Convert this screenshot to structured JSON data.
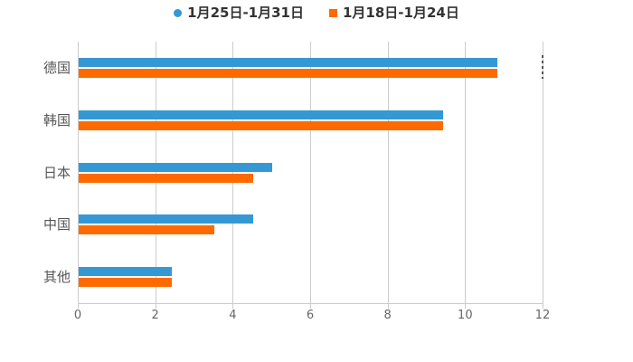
{
  "legend": {
    "items": [
      {
        "label": "1月25日-1月31日",
        "marker": "circle",
        "color": "#3498d4"
      },
      {
        "label": "1月18日-1月24日",
        "marker": "square",
        "color": "#ff6a00"
      }
    ]
  },
  "chart_data": {
    "type": "bar",
    "orientation": "horizontal",
    "title": "",
    "categories": [
      "德国",
      "韩国",
      "日本",
      "中国",
      "其他"
    ],
    "series": [
      {
        "name": "1月25日-1月31日",
        "color": "#3498d4",
        "values": [
          10.8,
          9.4,
          5.0,
          4.5,
          2.4
        ]
      },
      {
        "name": "1月18日-1月24日",
        "color": "#ff6a00",
        "values": [
          10.8,
          9.4,
          4.5,
          3.5,
          2.4
        ]
      }
    ],
    "xlim": [
      0,
      12
    ],
    "xticks": [
      "0",
      "2",
      "4",
      "6",
      "8",
      "10",
      "12"
    ],
    "xlabel": "",
    "ylabel": "",
    "grid": "vertical",
    "legend_position": "top",
    "background": "#ffffff",
    "axis_color": "#cccccc",
    "tick_label_color": "#666666",
    "category_label_color": "#555555",
    "annotations": [
      {
        "type": "dashed-segment",
        "x": 12,
        "category": "德国",
        "color": "#555555"
      }
    ]
  }
}
